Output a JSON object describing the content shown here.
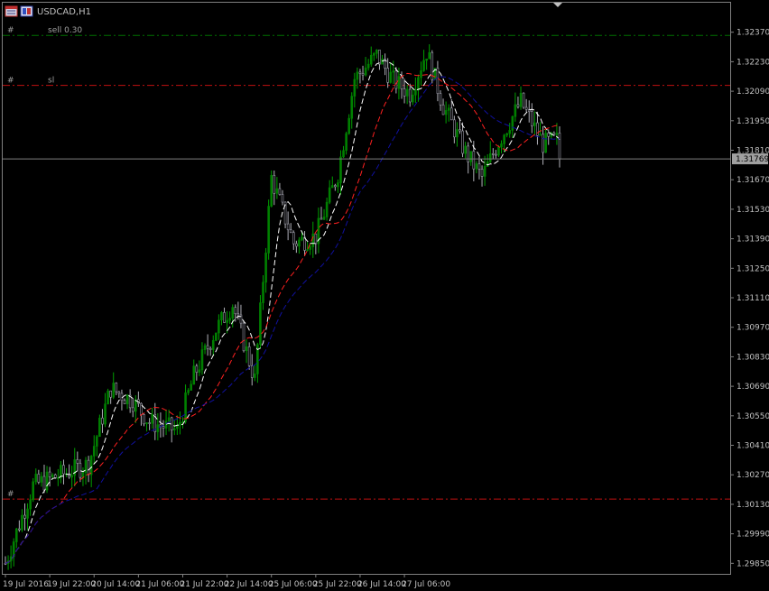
{
  "header": {
    "symbol_title": "USDCAD,H1"
  },
  "colors": {
    "background": "#000000",
    "frame": "#808080",
    "bull_body": "#008000",
    "bear_body": "#9a9aa8",
    "wick_bull": "#00a000",
    "wick_bear": "#b0b0b8",
    "ma_fast": "#ffffff",
    "ma_mid": "#ff2020",
    "ma_slow": "#1010a0",
    "sell_line": "#007000",
    "sl_line": "#c01010",
    "bid_line": "#808080",
    "bid_tag_bg": "#a0a0a0"
  },
  "chart_data": {
    "type": "candlestick",
    "symbol": "USDCAD",
    "timeframe": "H1",
    "ylim": [
      1.298,
      1.3251
    ],
    "y_ticks": [
      1.2985,
      1.2999,
      1.3013,
      1.3027,
      1.3041,
      1.3055,
      1.3069,
      1.3083,
      1.3097,
      1.3111,
      1.3125,
      1.3139,
      1.3153,
      1.3167,
      1.3181,
      1.3195,
      1.3209,
      1.3223,
      1.3237
    ],
    "y_tick_labels": [
      "1.29850",
      "1.29990",
      "1.30130",
      "1.30270",
      "1.30410",
      "1.30550",
      "1.30690",
      "1.30830",
      "1.30970",
      "1.31110",
      "1.31250",
      "1.31390",
      "1.31530",
      "1.31670",
      "1.31810",
      "1.31950",
      "1.32090",
      "1.32230",
      "1.32370"
    ],
    "x_labels": [
      "19 Jul 2016",
      "19 Jul 22:00",
      "20 Jul 14:00",
      "21 Jul 06:00",
      "21 Jul 22:00",
      "22 Jul 14:00",
      "25 Jul 06:00",
      "25 Jul 22:00",
      "26 Jul 14:00",
      "27 Jul 06:00"
    ],
    "bars_per_label": 16,
    "bid_price": 1.31769,
    "bid_label": "1.31769",
    "horizontal_lines": [
      {
        "label": "sell 0.30",
        "marker": "#",
        "price": 1.32355,
        "color": "#007000"
      },
      {
        "label": "sl",
        "marker": "#",
        "price": 1.32118,
        "color": "#c01010"
      },
      {
        "label": "",
        "marker": "#",
        "price": 1.30155,
        "color": "#c01010"
      }
    ],
    "anchors": [
      [
        0,
        1.2985
      ],
      [
        10,
        1.3022
      ],
      [
        18,
        1.3026
      ],
      [
        30,
        1.3032
      ],
      [
        38,
        1.3068
      ],
      [
        46,
        1.3062
      ],
      [
        52,
        1.3052
      ],
      [
        62,
        1.3048
      ],
      [
        68,
        1.3074
      ],
      [
        76,
        1.3096
      ],
      [
        82,
        1.3108
      ],
      [
        90,
        1.3072
      ],
      [
        96,
        1.3168
      ],
      [
        104,
        1.3137
      ],
      [
        112,
        1.314
      ],
      [
        120,
        1.317
      ],
      [
        126,
        1.3215
      ],
      [
        134,
        1.3226
      ],
      [
        140,
        1.3214
      ],
      [
        146,
        1.3208
      ],
      [
        152,
        1.3228
      ],
      [
        158,
        1.3202
      ],
      [
        166,
        1.318
      ],
      [
        172,
        1.3168
      ],
      [
        178,
        1.3185
      ],
      [
        186,
        1.3204
      ],
      [
        194,
        1.3184
      ],
      [
        200,
        1.3186
      ]
    ],
    "bars_count": 201,
    "ma_series": [
      {
        "period": 8,
        "color": "#ffffff",
        "style": "dashed"
      },
      {
        "period": 21,
        "color": "#ff2020",
        "style": "dashed"
      },
      {
        "period": 34,
        "color": "#1010a0",
        "style": "dashed"
      }
    ]
  }
}
